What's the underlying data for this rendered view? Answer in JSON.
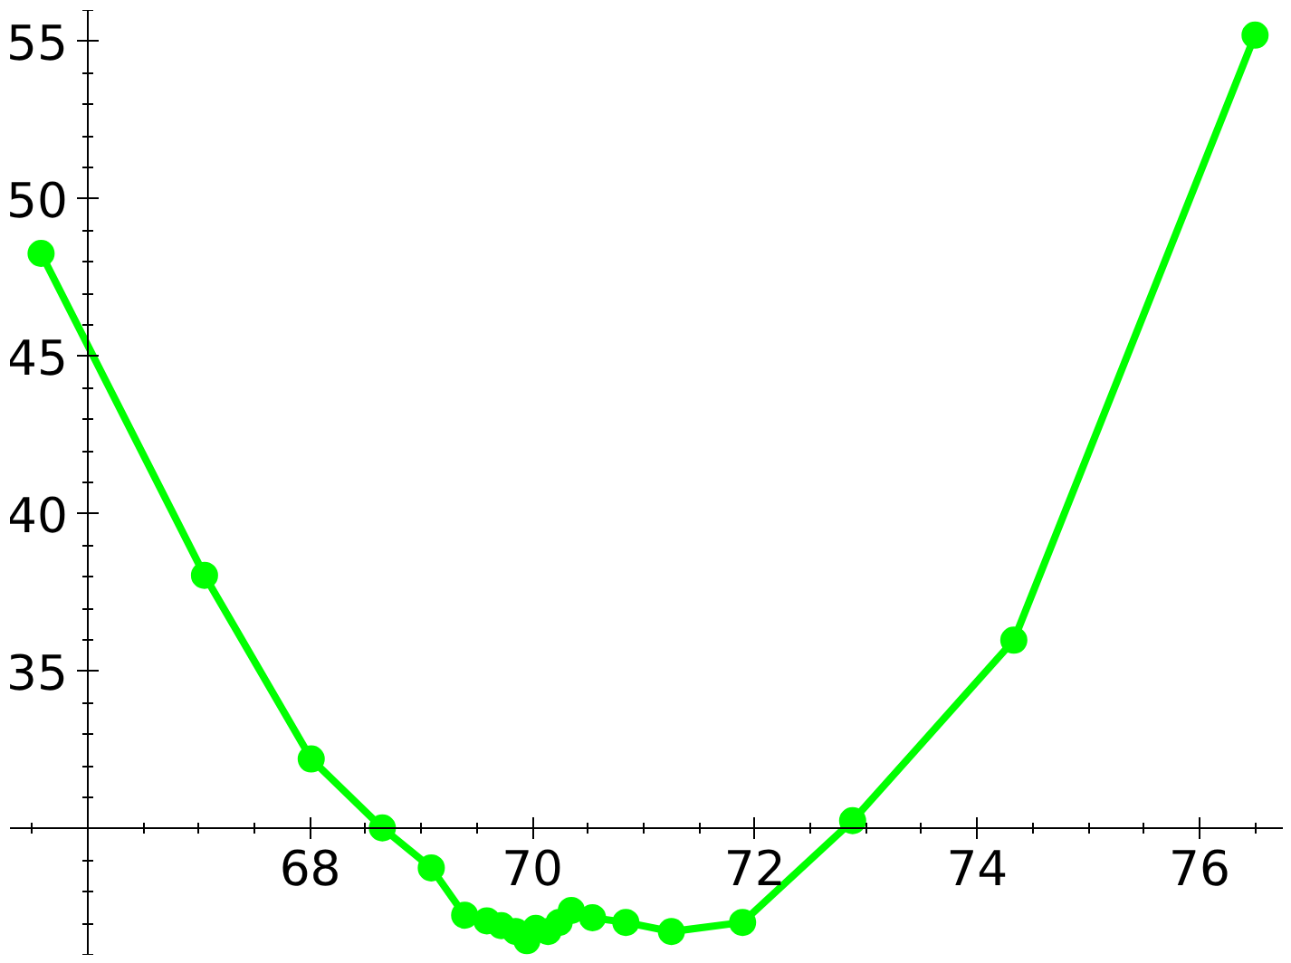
{
  "chart_data": {
    "type": "line",
    "color": "#00ff00",
    "marker": "circle",
    "line_style": "solid",
    "grid": false,
    "x": [
      65.58,
      67.05,
      68.01,
      68.65,
      69.09,
      69.39,
      69.59,
      69.72,
      69.85,
      69.95,
      70.03,
      70.14,
      70.24,
      70.35,
      70.54,
      70.84,
      71.25,
      71.89,
      72.88,
      74.33,
      76.5
    ],
    "values": [
      48.27,
      38.05,
      32.22,
      30.03,
      28.76,
      27.26,
      27.08,
      26.93,
      26.74,
      26.45,
      26.84,
      26.74,
      27.03,
      27.41,
      27.18,
      27.03,
      26.74,
      27.03,
      30.26,
      35.99,
      55.2
    ],
    "xlim": [
      65.3,
      76.75
    ],
    "ylim": [
      26,
      56
    ],
    "xticks": [
      {
        "value": 66,
        "label": null
      },
      68,
      70,
      72,
      74,
      76
    ],
    "yticks": [
      {
        "value": 30,
        "label": null
      },
      35,
      40,
      45,
      50,
      55
    ]
  }
}
